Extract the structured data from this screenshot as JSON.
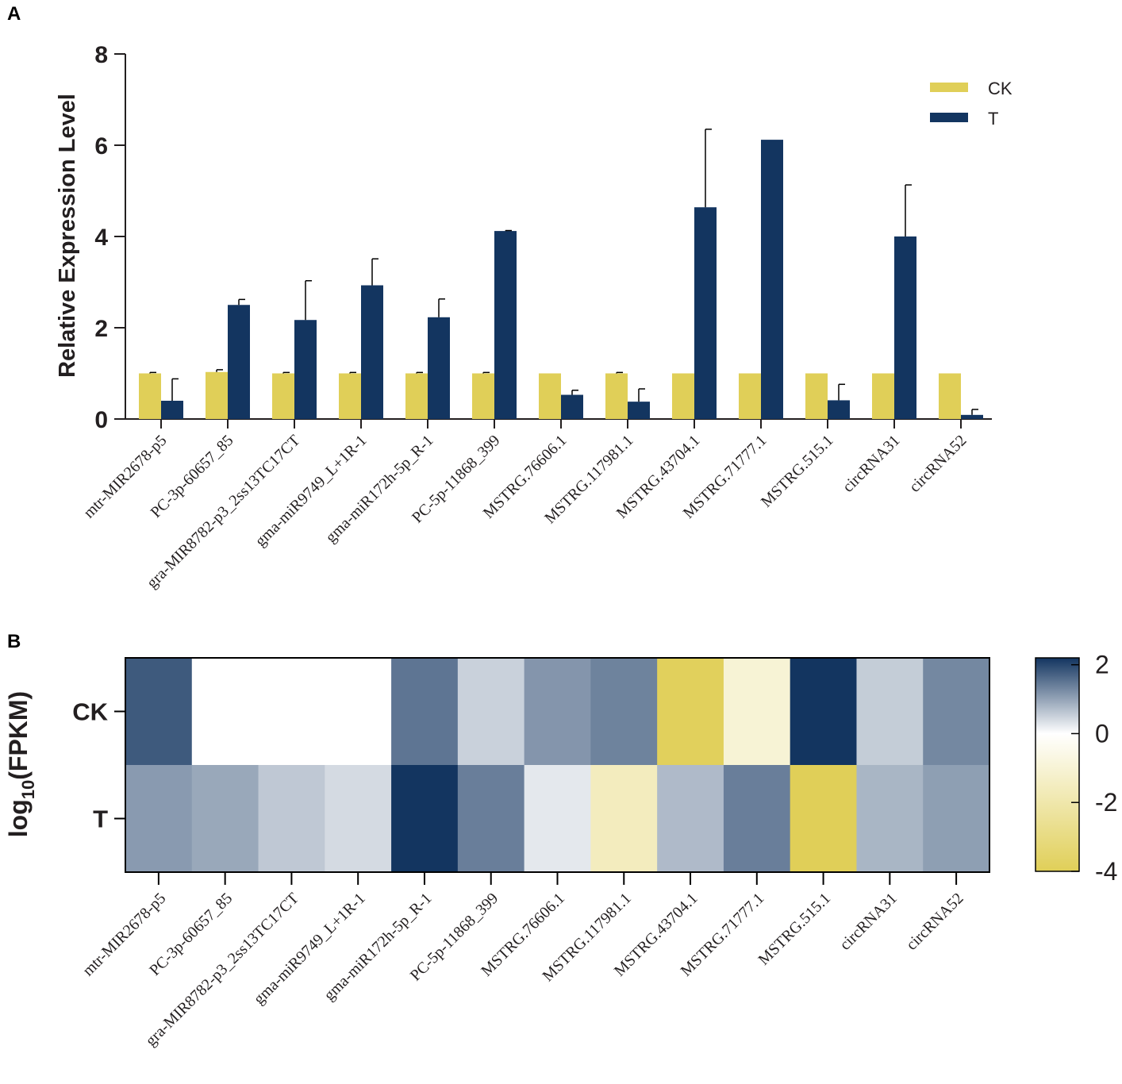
{
  "chart_data": [
    {
      "panel": "A",
      "type": "bar",
      "ylabel": "Relative Expression Level",
      "xlabel": "",
      "ylim": [
        0,
        8
      ],
      "yticks": [
        0,
        2,
        4,
        6,
        8
      ],
      "categories": [
        "mtr-MIR2678-p5",
        "PC-3p-60657_85",
        "gra-MIR8782-p3_2ss13TC17CT",
        "gma-miR9749_L+1R-1",
        "gma-miR172h-5p_R-1",
        "PC-5p-11868_399",
        "MSTRG.76606.1",
        "MSTRG.117981.1",
        "MSTRG.43704.1",
        "MSTRG.71777.1",
        "MSTRG.515.1",
        "circRNA31",
        "circRNA52"
      ],
      "series": [
        {
          "name": "CK",
          "color": "#e0cf58",
          "values": [
            1.0,
            1.03,
            1.0,
            1.0,
            1.0,
            1.0,
            1.0,
            1.0,
            1.0,
            1.0,
            1.0,
            1.0,
            1.0
          ],
          "errors": [
            0.02,
            0.05,
            0.02,
            0.02,
            0.02,
            0.02,
            0,
            0.02,
            0,
            0,
            0,
            0,
            0
          ]
        },
        {
          "name": "T",
          "color": "#133560",
          "values": [
            0.4,
            2.5,
            2.17,
            2.93,
            2.23,
            4.12,
            0.53,
            0.38,
            4.64,
            6.12,
            0.41,
            4.0,
            0.09
          ],
          "errors": [
            0.48,
            0.12,
            0.86,
            0.58,
            0.4,
            0.01,
            0.1,
            0.28,
            1.71,
            0,
            0.35,
            1.13,
            0.12
          ]
        }
      ],
      "legend": [
        "CK",
        "T"
      ]
    },
    {
      "panel": "B",
      "type": "heatmap",
      "ylabel_main": "log",
      "ylabel_sub": "10",
      "ylabel_tail": "(FPKM)",
      "rows": [
        "CK",
        "T"
      ],
      "columns": [
        "mtr-MIR2678-p5",
        "PC-3p-60657_85",
        "gra-MIR8782-p3_2ss13TC17CT",
        "gma-miR9749_L+1R-1",
        "gma-miR172h-5p_R-1",
        "PC-5p-11868_399",
        "MSTRG.76606.1",
        "MSTRG.117981.1",
        "MSTRG.43704.1",
        "MSTRG.71777.1",
        "MSTRG.515.1",
        "circRNA31",
        "circRNA52"
      ],
      "values": [
        [
          1.8,
          0.0,
          0.0,
          0.0,
          1.5,
          0.5,
          1.15,
          1.35,
          -3.9,
          -1.0,
          2.2,
          0.55,
          1.3
        ],
        [
          1.1,
          0.95,
          0.6,
          0.4,
          2.2,
          1.4,
          0.25,
          -1.55,
          0.75,
          1.4,
          -4.0,
          0.8,
          1.05
        ]
      ],
      "colorbar": {
        "min": -4,
        "max": 2.2,
        "ticks": [
          2,
          0,
          -2,
          -4
        ]
      },
      "colorscale": {
        "negative": "#e0cf58",
        "zero": "#ffffff",
        "positive": "#133560"
      }
    }
  ],
  "panels": {
    "a": "A",
    "b": "B"
  }
}
